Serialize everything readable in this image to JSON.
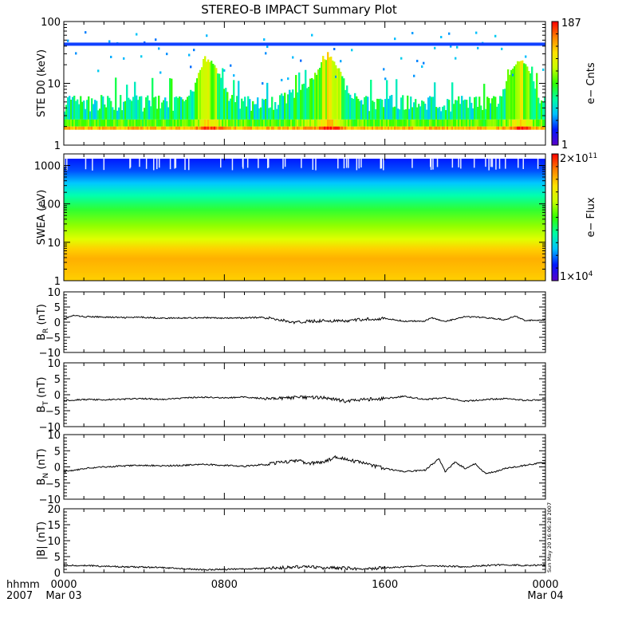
{
  "title": "STEREO-B IMPACT Summary Plot",
  "timestamp": "Sun May 20 16:06:28 2007",
  "x_axis": {
    "row_labels": [
      "hhmm",
      "2007"
    ],
    "ticks": [
      {
        "time": "0000",
        "date": "Mar 03"
      },
      {
        "time": "0800",
        "date": ""
      },
      {
        "time": "1600",
        "date": ""
      },
      {
        "time": "0000",
        "date": "Mar 04"
      }
    ]
  },
  "colors": {
    "frame": "#000000",
    "trace": "#000000",
    "spectrogram_scale": [
      "#5a00c8",
      "#0018ff",
      "#00c0ff",
      "#00ffa0",
      "#30ff00",
      "#c8ff00",
      "#ffe000",
      "#ff8000",
      "#ff0000"
    ]
  },
  "chart_data": [
    {
      "type": "heatmap",
      "name": "ste",
      "ylabel": "STE D0 (keV)",
      "yscale": "log",
      "ylim": [
        1,
        100
      ],
      "yticks": [
        "1",
        "10",
        "100"
      ],
      "xlim_hours": [
        0,
        24
      ],
      "colorbar": {
        "label": "e− Cnts",
        "max": "187",
        "min": "1"
      },
      "description_values": {
        "background_counts_low_energy": 60,
        "burst_hours": [
          7.2,
          13.2,
          22.7
        ],
        "peak_burst_hour": 13.2,
        "steady_line_keV": 43
      }
    },
    {
      "type": "heatmap",
      "name": "swea",
      "ylabel": "SWEA (eV)",
      "yscale": "log",
      "ylim": [
        1,
        2000
      ],
      "yticks": [
        "1",
        "10",
        "100",
        "1000"
      ],
      "xlim_hours": [
        0,
        24
      ],
      "colorbar": {
        "label": "e− Flux",
        "max_mantissa": "2×10",
        "max_exp": "11",
        "min_mantissa": "1×10",
        "min_exp": "4"
      }
    },
    {
      "type": "line",
      "name": "br",
      "ylabel_main": "B",
      "ylabel_sub": "R",
      "ylabel_unit": " (nT)",
      "ylim": [
        -10,
        10
      ],
      "yticks": [
        "10",
        "5",
        "0",
        "−5",
        "−10"
      ],
      "xlim_hours": [
        0,
        24
      ],
      "x": [
        0,
        0.5,
        1,
        2,
        3,
        4,
        5,
        6,
        7,
        8,
        9,
        10,
        11,
        11.5,
        12,
        13,
        14,
        15,
        16,
        17,
        18,
        18.3,
        19,
        20,
        21,
        22,
        22.5,
        23,
        24
      ],
      "y": [
        1.2,
        2.2,
        1.8,
        1.7,
        1.5,
        1.6,
        1.3,
        1.4,
        1.5,
        1.3,
        1.4,
        1.6,
        0.5,
        -0.2,
        0.2,
        0.5,
        0.3,
        1.0,
        1.2,
        0.3,
        0.4,
        1.5,
        0.2,
        1.8,
        1.5,
        0.8,
        2.0,
        0.5,
        0.8
      ]
    },
    {
      "type": "line",
      "name": "bt",
      "ylabel_main": "B",
      "ylabel_sub": "T",
      "ylabel_unit": " (nT)",
      "ylim": [
        -10,
        10
      ],
      "yticks": [
        "10",
        "5",
        "0",
        "−5",
        "−10"
      ],
      "xlim_hours": [
        0,
        24
      ],
      "x": [
        0,
        1,
        2,
        3,
        4,
        5,
        6,
        7,
        8,
        9,
        10,
        11,
        12,
        13,
        14,
        15,
        16,
        17,
        18,
        19,
        20,
        21,
        22,
        23,
        24
      ],
      "y": [
        -1.8,
        -1.5,
        -1.6,
        -1.4,
        -1.2,
        -1.5,
        -1.0,
        -0.8,
        -1.0,
        -0.7,
        -1.2,
        -1.0,
        -0.8,
        -1.0,
        -2.0,
        -1.5,
        -1.2,
        -0.5,
        -1.5,
        -1.0,
        -2.0,
        -1.5,
        -1.2,
        -1.8,
        -1.5
      ]
    },
    {
      "type": "line",
      "name": "bn",
      "ylabel_main": "B",
      "ylabel_sub": "N",
      "ylabel_unit": " (nT)",
      "ylim": [
        -10,
        10
      ],
      "yticks": [
        "10",
        "5",
        "0",
        "−5",
        "−10"
      ],
      "xlim_hours": [
        0,
        24
      ],
      "x": [
        0,
        1,
        2,
        3,
        4,
        5,
        6,
        7,
        8,
        9,
        10,
        11,
        11.8,
        12,
        13,
        13.5,
        14,
        15,
        16,
        17,
        18,
        18.7,
        19,
        19.5,
        20,
        20.5,
        21,
        21.5,
        22,
        23,
        24
      ],
      "y": [
        -1.5,
        -0.5,
        0.0,
        0.3,
        0.5,
        0.3,
        0.5,
        0.8,
        0.5,
        0.2,
        0.8,
        1.5,
        2.0,
        1.0,
        1.5,
        3.0,
        2.5,
        1.0,
        -0.5,
        -1.5,
        -1.0,
        2.5,
        -1.5,
        1.5,
        -0.5,
        1.0,
        -2.0,
        -1.5,
        -0.5,
        0.5,
        1.5
      ]
    },
    {
      "type": "line",
      "name": "bmag",
      "ylabel_main": "|B|",
      "ylabel_sub": "",
      "ylabel_unit": " (nT)",
      "ylim": [
        0,
        20
      ],
      "yticks": [
        "20",
        "15",
        "10",
        "5",
        "0"
      ],
      "xlim_hours": [
        0,
        24
      ],
      "x": [
        0,
        1,
        2,
        3,
        4,
        5,
        6,
        7,
        8,
        9,
        10,
        11,
        12,
        13,
        14,
        15,
        16,
        17,
        18,
        19,
        20,
        21,
        22,
        23,
        24
      ],
      "y": [
        2.3,
        2.2,
        2.0,
        1.8,
        1.7,
        1.5,
        1.2,
        0.9,
        1.0,
        1.1,
        1.3,
        1.6,
        1.8,
        1.5,
        1.4,
        1.2,
        1.5,
        1.8,
        2.2,
        2.0,
        1.8,
        2.2,
        2.5,
        2.2,
        2.4
      ]
    }
  ]
}
